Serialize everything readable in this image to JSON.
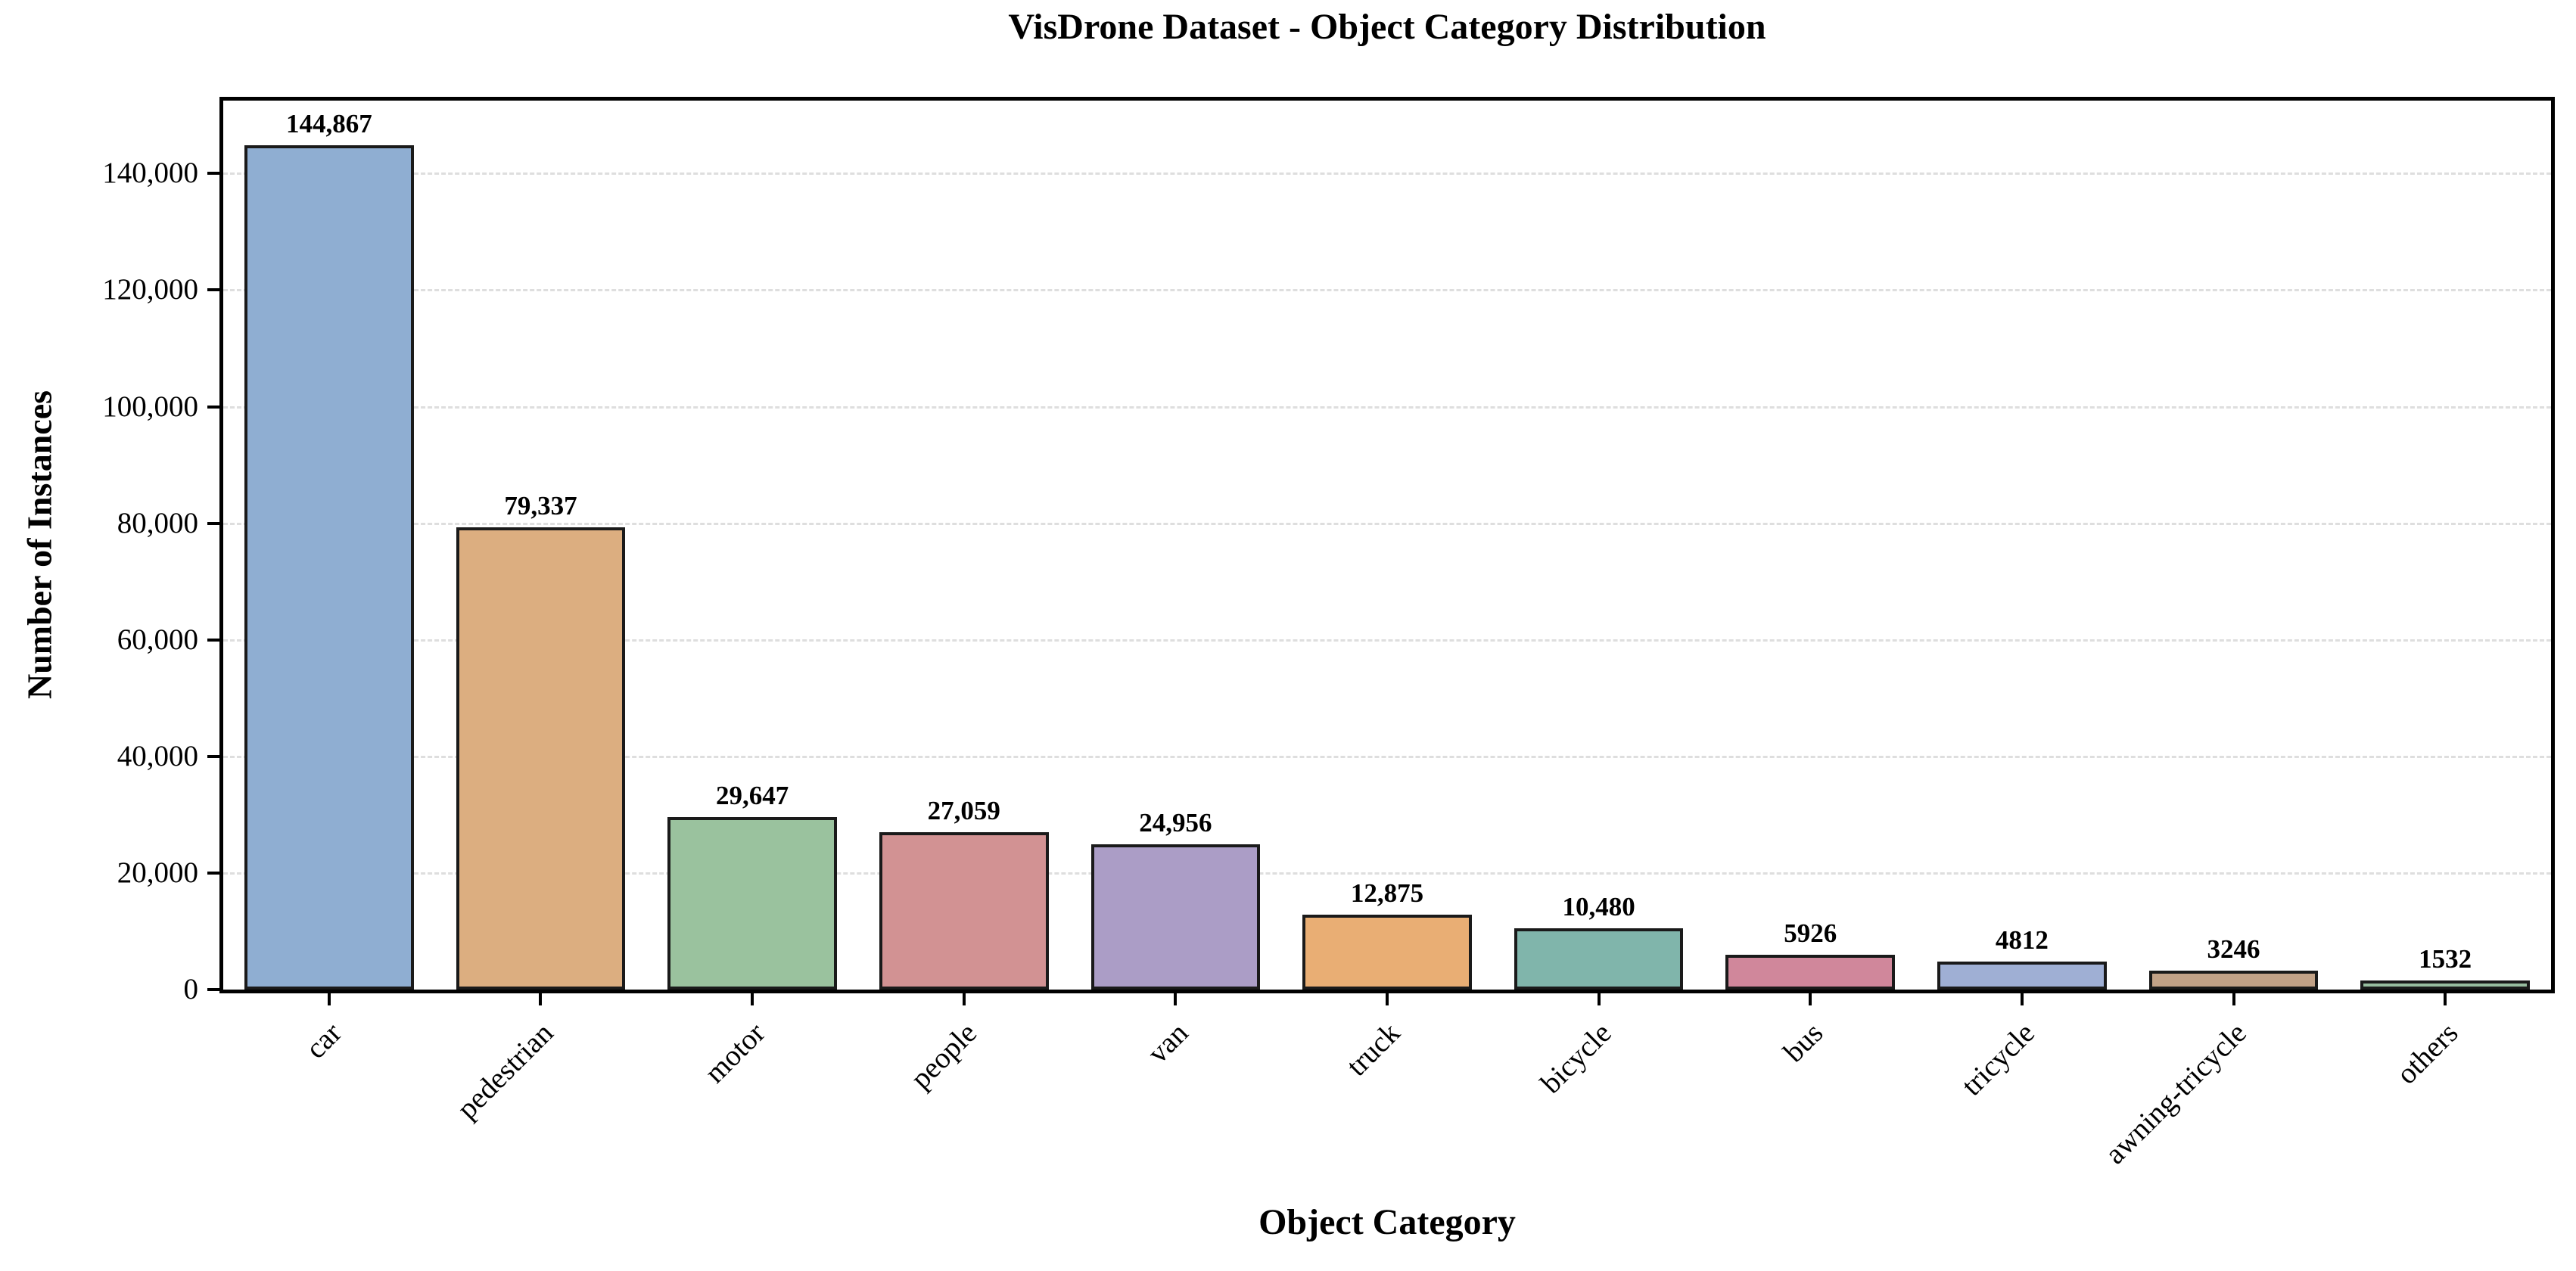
{
  "chart_data": {
    "type": "bar",
    "title": "VisDrone Dataset - Object Category Distribution",
    "xlabel": "Object Category",
    "ylabel": "Number of Instances",
    "categories": [
      "car",
      "pedestrian",
      "motor",
      "people",
      "van",
      "truck",
      "bicycle",
      "bus",
      "tricycle",
      "awning-tricycle",
      "others"
    ],
    "values": [
      144867,
      79337,
      29647,
      27059,
      24956,
      12875,
      10480,
      5926,
      4812,
      3246,
      1532
    ],
    "value_labels": [
      "144,867",
      "79,337",
      "29,647",
      "27,059",
      "24,956",
      "12,875",
      "10,480",
      "5926",
      "4812",
      "3246",
      "1532"
    ],
    "bar_colors": [
      "#8FAED2",
      "#DCAE80",
      "#9AC29E",
      "#D29293",
      "#AB9DC6",
      "#E9AE74",
      "#80B5AB",
      "#D0879B",
      "#9FAFD4",
      "#C2A287",
      "#97BD9F"
    ],
    "bar_edge_color": "#1a1a1a",
    "ylim": [
      0,
      152500
    ],
    "yticks": [
      0,
      20000,
      40000,
      60000,
      80000,
      100000,
      120000,
      140000
    ],
    "ytick_labels": [
      "0",
      "20,000",
      "40,000",
      "60,000",
      "80,000",
      "100,000",
      "120,000",
      "140,000"
    ],
    "grid": "horizontal-dashed",
    "legend_position": "none",
    "bar_width_fraction": 0.8
  }
}
